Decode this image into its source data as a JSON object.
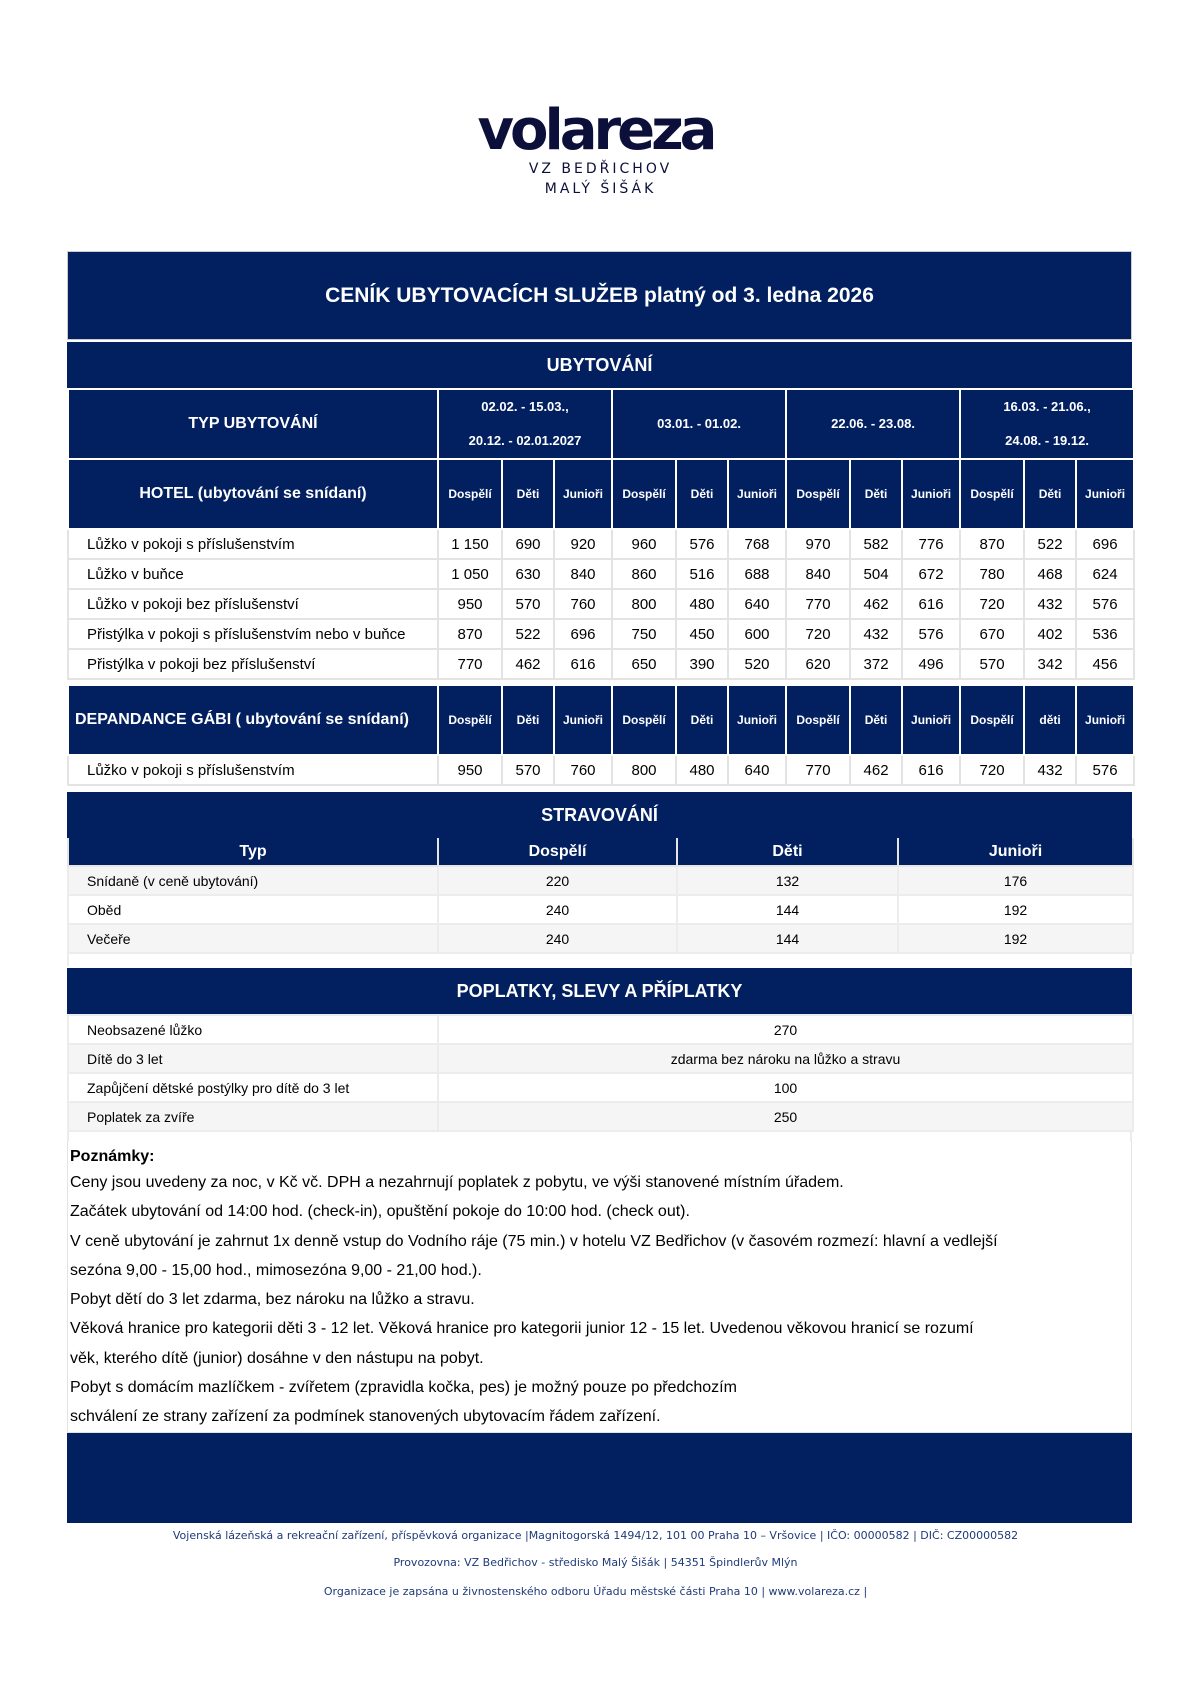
{
  "logo": {
    "word": "volareza",
    "line1": "VZ BEDŘICHOV",
    "line2": "MALÝ ŠIŠÁK"
  },
  "colors": {
    "navy": "#022060"
  },
  "title": "CENÍK UBYTOVACÍCH SLUŽEB  platný od 3. ledna 2026",
  "ubytovani": {
    "heading": "UBYTOVÁNÍ",
    "type_header": "TYP UBYTOVÁNÍ",
    "periods": [
      {
        "line1": "02.02. - 15.03.,",
        "line2": "20.12. - 02.01.2027"
      },
      {
        "line1": "03.01. - 01.02.",
        "line2": ""
      },
      {
        "line1": "22.06. - 23.08.",
        "line2": ""
      },
      {
        "line1": "16.03. - 21.06.,",
        "line2": "24.08. -  19.12."
      }
    ],
    "hotel": {
      "header": "HOTEL (ubytování se snídaní)",
      "cols": [
        "Dospělí",
        "Děti",
        "Junioři",
        "Dospělí",
        "Děti",
        "Junioři",
        "Dospělí",
        "Děti",
        "Junioři",
        "Dospělí",
        "Děti",
        "Junioři"
      ],
      "rows": [
        {
          "label": "Lůžko v pokoji s příslušenstvím",
          "values": [
            "1 150",
            "690",
            "920",
            "960",
            "576",
            "768",
            "970",
            "582",
            "776",
            "870",
            "522",
            "696"
          ]
        },
        {
          "label": "Lůžko v buňce",
          "values": [
            "1 050",
            "630",
            "840",
            "860",
            "516",
            "688",
            "840",
            "504",
            "672",
            "780",
            "468",
            "624"
          ]
        },
        {
          "label": "Lůžko v pokoji bez příslušenství",
          "values": [
            "950",
            "570",
            "760",
            "800",
            "480",
            "640",
            "770",
            "462",
            "616",
            "720",
            "432",
            "576"
          ]
        },
        {
          "label": "Přistýlka v pokoji s příslušenstvím nebo v buňce",
          "values": [
            "870",
            "522",
            "696",
            "750",
            "450",
            "600",
            "720",
            "432",
            "576",
            "670",
            "402",
            "536"
          ]
        },
        {
          "label": "Přistýlka v pokoji bez příslušenství",
          "values": [
            "770",
            "462",
            "616",
            "650",
            "390",
            "520",
            "620",
            "372",
            "496",
            "570",
            "342",
            "456"
          ]
        }
      ]
    },
    "dependance": {
      "header": "DEPANDANCE GÁBI ( ubytování se snídaní)",
      "cols": [
        "Dospělí",
        "Děti",
        "Junioři",
        "Dospělí",
        "Děti",
        "Junioři",
        "Dospělí",
        "Děti",
        "Junioři",
        "Dospělí",
        "děti",
        "Junioři"
      ],
      "rows": [
        {
          "label": "Lůžko v pokoji s příslušenstvím",
          "values": [
            "950",
            "570",
            "760",
            "800",
            "480",
            "640",
            "770",
            "462",
            "616",
            "720",
            "432",
            "576"
          ]
        }
      ]
    }
  },
  "stravovani": {
    "heading": "STRAVOVÁNÍ",
    "cols": [
      "Typ",
      "Dospělí",
      "Děti",
      "Junioři"
    ],
    "rows": [
      {
        "label": "Snídaně (v ceně ubytování)",
        "values": [
          "220",
          "132",
          "176"
        ]
      },
      {
        "label": "Oběd",
        "values": [
          "240",
          "144",
          "192"
        ]
      },
      {
        "label": "Večeře",
        "values": [
          "240",
          "144",
          "192"
        ]
      }
    ]
  },
  "poplatky": {
    "heading": "POPLATKY, SLEVY A PŘÍPLATKY",
    "rows": [
      {
        "label": "Neobsazené lůžko",
        "value": "270"
      },
      {
        "label": "Dítě do 3 let",
        "value": "zdarma bez nároku na lůžko a stravu"
      },
      {
        "label": "Zapůjčení dětské postýlky pro dítě do 3 let",
        "value": "100"
      },
      {
        "label": "Poplatek za zvíře",
        "value": "250"
      }
    ]
  },
  "notes": {
    "heading": "Poznámky:",
    "lines": [
      "Ceny jsou uvedeny za noc, v Kč vč. DPH a nezahrnují poplatek z pobytu, ve výši stanovené místním úřadem.",
      "Začátek ubytování od 14:00 hod. (check-in), opuštění pokoje do 10:00 hod. (check out).",
      "V ceně ubytování je zahrnut 1x denně vstup do Vodního ráje (75 min.) v hotelu VZ Bedřichov (v časovém rozmezí: hlavní a vedlejší",
      "sezóna 9,00 - 15,00 hod., mimosezóna 9,00 - 21,00 hod.).",
      "Pobyt dětí do 3 let zdarma, bez nároku na lůžko a stravu.",
      "Věková hranice pro kategorii děti 3 - 12 let. Věková hranice pro kategorii junior 12 - 15 let. Uvedenou věkovou hranicí se rozumí",
      "věk, kterého dítě (junior) dosáhne v den nástupu na pobyt.",
      "Pobyt s domácím mazlíčkem  - zvířetem (zpravidla kočka, pes) je možný pouze po předchozím",
      "schválení ze strany zařízení za podmínek stanovených ubytovacím řádem zařízení."
    ]
  },
  "footer": {
    "line1": "Vojenská lázeňská a rekreační zařízení, příspěvková organizace |Magnitogorská 1494/12, 101 00 Praha 10 – Vršovice | IČO: 00000582 | DIČ: CZ00000582",
    "line2": "Provozovna: VZ Bedřichov - středisko Malý Šišák  | 54351 Špindlerův Mlýn",
    "line3": "Organizace je zapsána u živnostenského odboru Úřadu městské části Praha 10 | www.volareza.cz |"
  }
}
